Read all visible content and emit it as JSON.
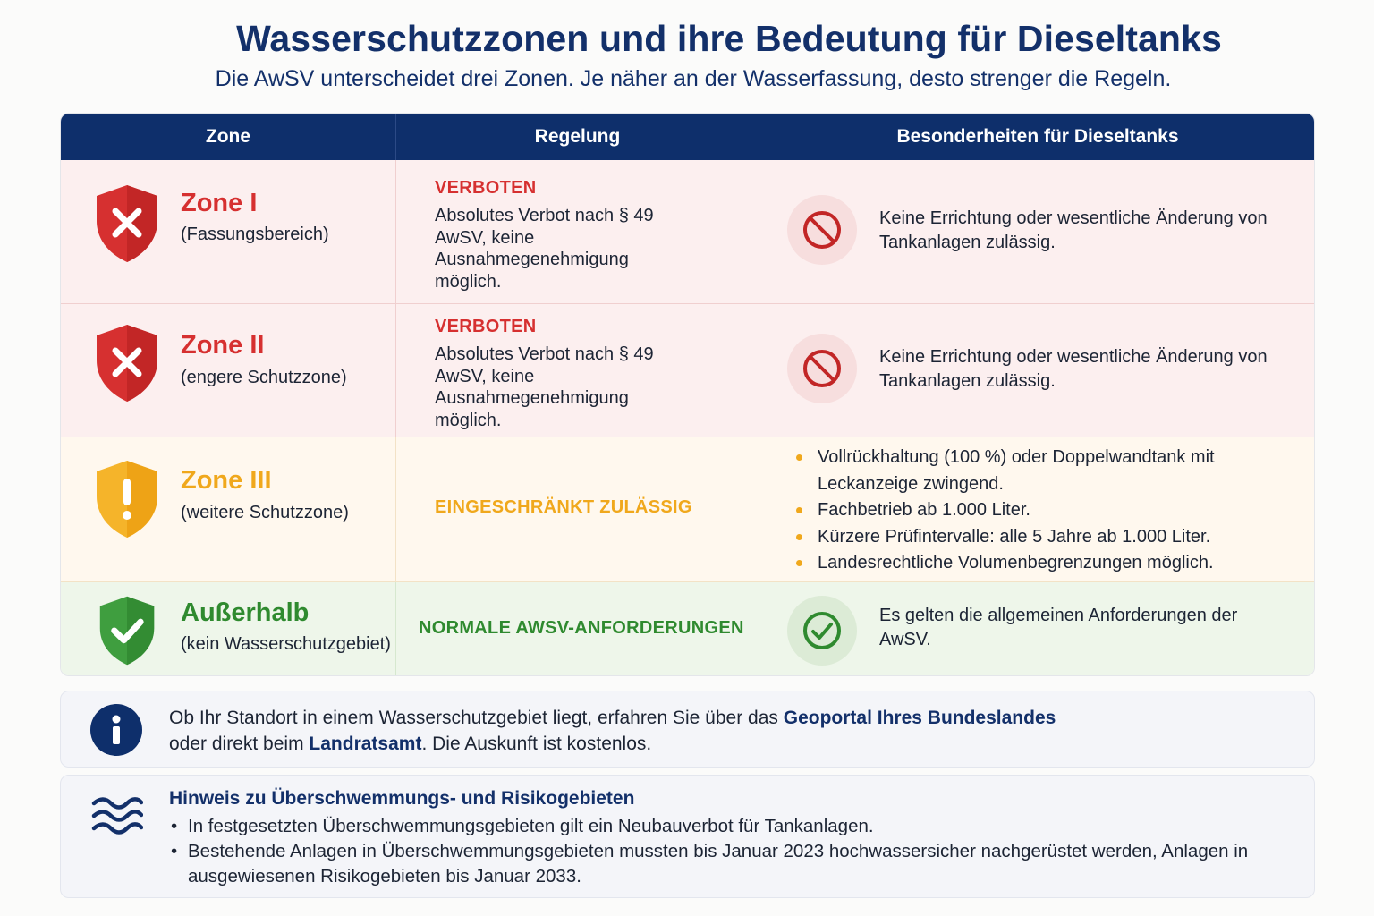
{
  "header": {
    "title": "Wasserschutzzonen und ihre Bedeutung für Dieseltanks",
    "subtitle": "Die AwSV unterscheidet drei Zonen. Je näher an der Wasserfassung, desto strenger die Regeln."
  },
  "table": {
    "columns": [
      "Zone",
      "Regelung",
      "Besonderheiten für Dieseltanks"
    ],
    "rows": [
      {
        "zone": "Zone I",
        "zone_sub": "(Fassungsbereich)",
        "shield_icon": "shield-x-icon",
        "color": "#d63030",
        "rule_label": "VERBOTEN",
        "rule_text": "Absolutes Verbot nach § 49 AwSV, keine Ausnahmegenehmigung möglich.",
        "detail_icon": "prohibited-icon",
        "detail": "Keine Errichtung oder wesentliche Änderung von Tankanlagen zulässig."
      },
      {
        "zone": "Zone II",
        "zone_sub": "(engere Schutzzone)",
        "shield_icon": "shield-x-icon",
        "color": "#d63030",
        "rule_label": "VERBOTEN",
        "rule_text": "Absolutes Verbot nach § 49 AwSV, keine Ausnahmegenehmigung möglich.",
        "detail_icon": "prohibited-icon",
        "detail": "Keine Errichtung oder wesentliche Änderung von Tankanlagen zulässig."
      },
      {
        "zone": "Zone III",
        "zone_sub": "(weitere Schutzzone)",
        "shield_icon": "shield-exclamation-icon",
        "color": "#f0a81c",
        "rule_label": "EINGESCHRÄNKT ZULÄSSIG",
        "details": [
          "Vollrückhaltung (100 %) oder Doppelwandtank mit Leckanzeige zwingend.",
          "Fachbetrieb ab 1.000 Liter.",
          "Kürzere Prüfintervalle: alle 5 Jahre ab 1.000 Liter.",
          "Landesrechtliche Volumenbegrenzungen möglich."
        ]
      },
      {
        "zone": "Außerhalb",
        "zone_sub": "(kein Wasserschutzgebiet)",
        "shield_icon": "shield-check-icon",
        "color": "#3a9a3a",
        "rule_label": "NORMALE AWSV-ANFORDERUNGEN",
        "detail_icon": "check-circle-icon",
        "detail": "Es gelten die allgemeinen Anforderungen der AwSV."
      }
    ]
  },
  "info": {
    "icon": "info-icon",
    "text_1": "Ob Ihr Standort in einem Wasserschutzgebiet liegt, erfahren Sie über das ",
    "bold_1": "Geoportal Ihres Bundeslandes",
    "text_2": "oder direkt beim ",
    "bold_2": "Landratsamt",
    "text_3": ". Die Auskunft ist kostenlos."
  },
  "flood": {
    "icon": "waves-icon",
    "title": "Hinweis zu Überschwemmungs- und Risikogebieten",
    "items": [
      "In festgesetzten Überschwemmungsgebieten gilt ein Neubauverbot für Tankanlagen.",
      "Bestehende Anlagen in Überschwemmungsgebieten mussten bis Januar 2023 hochwassersicher nachgerüstet werden, Anlagen in ausgewiesenen Risikogebieten bis Januar 2033."
    ]
  },
  "colors": {
    "navy": "#0e2f6b",
    "red": "#d63030",
    "amber": "#f0a81c",
    "green": "#3a9a3a"
  }
}
